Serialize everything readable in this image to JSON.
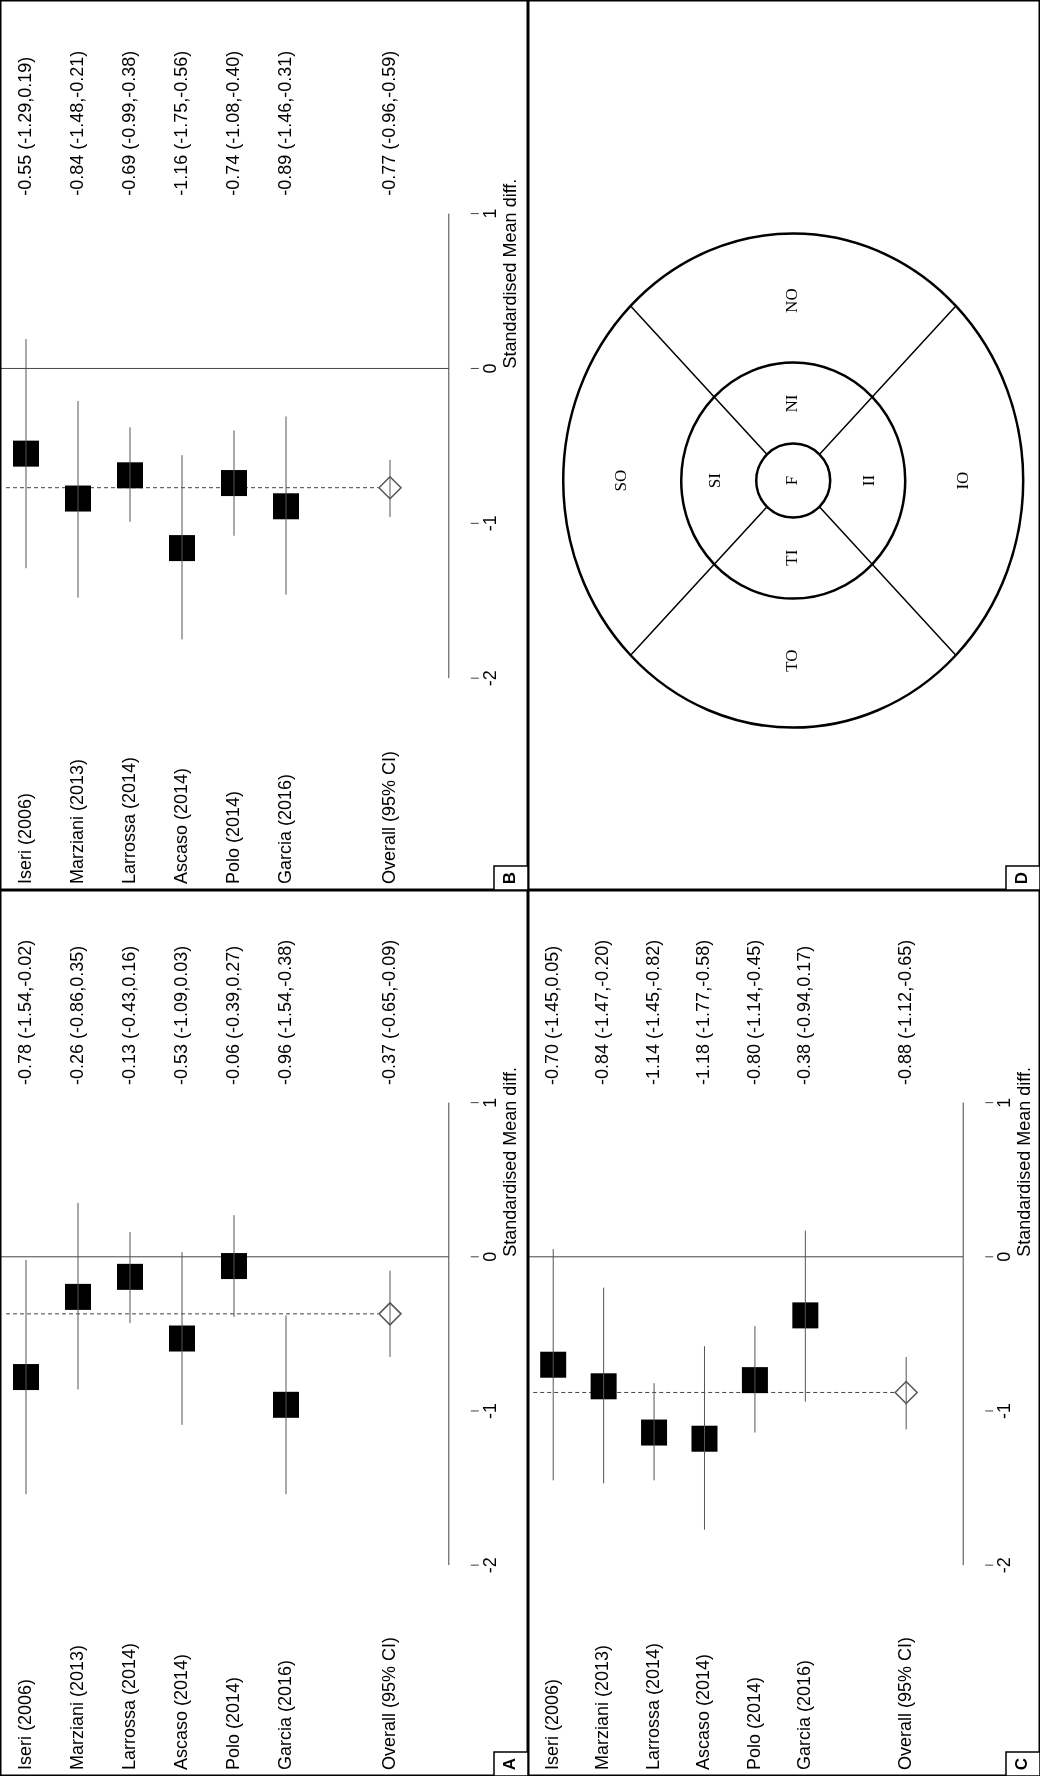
{
  "chart_data": [
    {
      "type": "scatter",
      "ylabel": "Standardised Mean diff.",
      "categories": [
        "Iseri (2006)",
        "Marziani (2013)",
        "Larrossa (2014)",
        "Ascaso (2014)",
        "Polo (2014)",
        "Garcia (2016)",
        null,
        "Overall (95% CI)"
      ],
      "ylim": [
        -2,
        1
      ],
      "yticks": [
        -2,
        -1,
        0,
        1
      ],
      "marker": "square",
      "annotations": [
        "A",
        "-0.37 (-0.65,-0.09)"
      ],
      "ref_lines": [
        {
          "axis": "y",
          "value": 0
        },
        {
          "axis": "y",
          "value": -0.37,
          "line_style": "dashed"
        }
      ],
      "series": [
        {
          "color": "#000000",
          "values": [
            -0.78,
            -0.26,
            -0.13,
            -0.53,
            -0.06,
            -0.96,
            null,
            null
          ],
          "errors": [
            [
              -1.54,
              -0.02
            ],
            [
              -0.86,
              0.35
            ],
            [
              -0.43,
              0.16
            ],
            [
              -1.09,
              0.03
            ],
            [
              -0.39,
              0.27
            ],
            [
              -1.54,
              -0.38
            ],
            null,
            null
          ],
          "value_labels": [
            "-0.78 (-1.54,-0.02)",
            "-0.26 (-0.86,0.35)",
            "-0.13 (-0.43,0.16)",
            "-0.53 (-1.09,0.03)",
            "-0.06 (-0.39,0.27)",
            "-0.96 (-1.54,-0.38)",
            null,
            null
          ]
        },
        {
          "marker": "diamond",
          "color": "#555555",
          "values": [
            null,
            null,
            null,
            null,
            null,
            null,
            null,
            -0.37
          ],
          "errors": [
            null,
            null,
            null,
            null,
            null,
            null,
            null,
            [
              -0.65,
              -0.09
            ]
          ]
        }
      ]
    },
    {
      "type": "scatter",
      "ylabel": "Standardised Mean diff.",
      "categories": [
        "Iseri (2006)",
        "Marziani (2013)",
        "Larrossa (2014)",
        "Ascaso (2014)",
        "Polo (2014)",
        "Garcia (2016)",
        null,
        "Overall (95% CI)"
      ],
      "ylim": [
        -2,
        1
      ],
      "yticks": [
        -2,
        -1,
        0,
        1
      ],
      "marker": "square",
      "annotations": [
        "B",
        "-0.77 (-0.96,-0.59)"
      ],
      "ref_lines": [
        {
          "axis": "y",
          "value": 0
        },
        {
          "axis": "y",
          "value": -0.77,
          "line_style": "dashed"
        }
      ],
      "series": [
        {
          "color": "#000000",
          "values": [
            -0.55,
            -0.84,
            -0.69,
            -1.16,
            -0.74,
            -0.89,
            null,
            null
          ],
          "errors": [
            [
              -1.29,
              0.19
            ],
            [
              -1.48,
              -0.21
            ],
            [
              -0.99,
              -0.38
            ],
            [
              -1.75,
              -0.56
            ],
            [
              -1.08,
              -0.4
            ],
            [
              -1.46,
              -0.31
            ],
            null,
            null
          ],
          "value_labels": [
            "-0.55 (-1.29,0.19)",
            "-0.84 (-1.48,-0.21)",
            "-0.69 (-0.99,-0.38)",
            "-1.16 (-1.75,-0.56)",
            "-0.74 (-1.08,-0.40)",
            "-0.89 (-1.46,-0.31)",
            null,
            null
          ]
        },
        {
          "marker": "diamond",
          "color": "#555555",
          "values": [
            null,
            null,
            null,
            null,
            null,
            null,
            null,
            -0.77
          ],
          "errors": [
            null,
            null,
            null,
            null,
            null,
            null,
            null,
            [
              -0.96,
              -0.59
            ]
          ]
        }
      ]
    },
    {
      "type": "scatter",
      "ylabel": "Standardised Mean diff.",
      "categories": [
        "Iseri (2006)",
        "Marziani (2013)",
        "Larrossa (2014)",
        "Ascaso (2014)",
        "Polo (2014)",
        "Garcia (2016)",
        null,
        "Overall (95% CI)"
      ],
      "ylim": [
        -2,
        1
      ],
      "yticks": [
        -2,
        -1,
        0,
        1
      ],
      "marker": "square",
      "annotations": [
        "C",
        "-0.88 (-1.12,-0.65)"
      ],
      "ref_lines": [
        {
          "axis": "y",
          "value": 0
        },
        {
          "axis": "y",
          "value": -0.88,
          "line_style": "dashed"
        }
      ],
      "series": [
        {
          "color": "#000000",
          "values": [
            -0.7,
            -0.84,
            -1.14,
            -1.18,
            -0.8,
            -0.38,
            null,
            null
          ],
          "errors": [
            [
              -1.45,
              0.05
            ],
            [
              -1.47,
              -0.2
            ],
            [
              -1.45,
              -0.82
            ],
            [
              -1.77,
              -0.58
            ],
            [
              -1.14,
              -0.45
            ],
            [
              -0.94,
              0.17
            ],
            null,
            null
          ],
          "value_labels": [
            "-0.70 (-1.45,0.05)",
            "-0.84 (-1.47,-0.20)",
            "-1.14 (-1.45,-0.82)",
            "-1.18 (-1.77,-0.58)",
            "-0.80 (-1.14,-0.45)",
            "-0.38 (-0.94,0.17)",
            null,
            null
          ]
        },
        {
          "marker": "diamond",
          "color": "#555555",
          "values": [
            null,
            null,
            null,
            null,
            null,
            null,
            null,
            -0.88
          ],
          "errors": [
            null,
            null,
            null,
            null,
            null,
            null,
            null,
            [
              -1.12,
              -0.65
            ]
          ]
        }
      ]
    },
    {
      "type": "other",
      "annotations": [
        "D",
        "SO",
        "NO",
        "TO",
        "IO",
        "SI",
        "NI",
        "TI",
        "II",
        "F"
      ]
    }
  ]
}
